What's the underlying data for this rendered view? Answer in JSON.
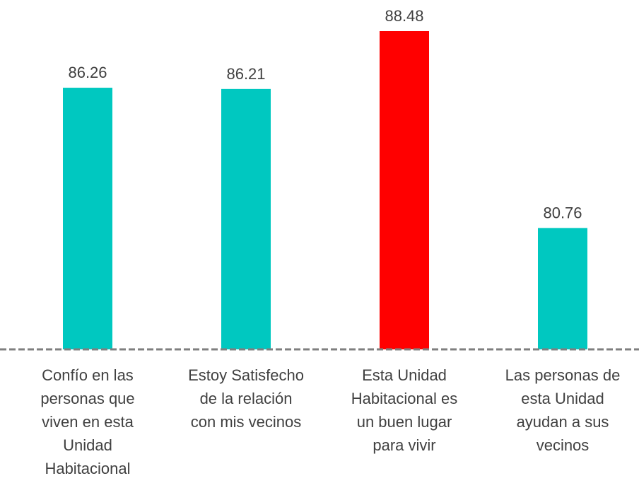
{
  "chart_data": {
    "type": "bar",
    "categories": [
      "Confío en las\npersonas que\nviven en esta\nUnidad\nHabitacional",
      "Estoy Satisfecho\nde la relación\ncon mis vecinos",
      "Esta Unidad\nHabitacional es\nun buen lugar\npara vivir",
      "Las personas de\nesta Unidad\nayudan a sus\nvecinos"
    ],
    "values": [
      86.26,
      86.21,
      88.48,
      80.76
    ],
    "colors": [
      "#00c8c0",
      "#00c8c0",
      "#ff0000",
      "#00c8c0"
    ],
    "ylim": [
      76,
      89.7
    ]
  }
}
